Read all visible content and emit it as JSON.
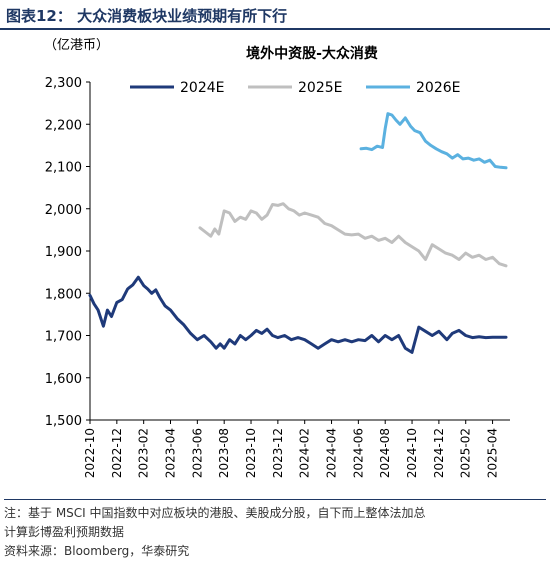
{
  "figure": {
    "title": "图表12：  大众消费板块业绩预期有所下行",
    "note_line1": "注：基于 MSCI 中国指数中对应板块的港股、美股成分股，自下而上整体法加总",
    "note_line2": "计算彭博盈利预期数据",
    "source": "资料来源：Bloomberg，华泰研究"
  },
  "chart_data": {
    "type": "line",
    "title": "境外中资股-大众消费",
    "unit_label": "（亿港币）",
    "ylim": [
      1500,
      2300
    ],
    "yticks": [
      "1,500",
      "1,600",
      "1,700",
      "1,800",
      "1,900",
      "2,000",
      "2,100",
      "2,200",
      "2,300"
    ],
    "ytick_values": [
      1500,
      1600,
      1700,
      1800,
      1900,
      2000,
      2100,
      2200,
      2300
    ],
    "xticks": [
      "2022-10",
      "2022-12",
      "2023-02",
      "2023-04",
      "2023-06",
      "2023-08",
      "2023-10",
      "2023-12",
      "2024-02",
      "2024-04",
      "2024-06",
      "2024-08",
      "2024-10",
      "2024-12",
      "2025-02",
      "2025-04"
    ],
    "xlim_months": [
      0,
      31.3
    ],
    "legend_position": "top",
    "series": [
      {
        "name": "2024E",
        "color": "#1f3a7a",
        "x": [
          0,
          0.3,
          0.6,
          1.0,
          1.3,
          1.6,
          2.0,
          2.4,
          2.8,
          3.2,
          3.6,
          4.0,
          4.3,
          4.6,
          4.9,
          5.2,
          5.6,
          6.0,
          6.5,
          7.0,
          7.5,
          8.0,
          8.5,
          9.0,
          9.4,
          9.7,
          10.0,
          10.4,
          10.8,
          11.2,
          11.6,
          12.0,
          12.4,
          12.8,
          13.2,
          13.6,
          14.0,
          14.5,
          15.0,
          15.5,
          16.0,
          16.5,
          17.0,
          17.5,
          18.0,
          18.5,
          19.0,
          19.5,
          20.0,
          20.5,
          21.0,
          21.5,
          22.0,
          22.5,
          23.0,
          23.5,
          24.0,
          24.5,
          25.0,
          25.5,
          26.0,
          26.3,
          26.6,
          27.0,
          27.5,
          28.0,
          28.5,
          29.0,
          29.5,
          30.0,
          30.5,
          31.0
        ],
        "values": [
          1795,
          1775,
          1760,
          1722,
          1760,
          1745,
          1778,
          1785,
          1810,
          1820,
          1838,
          1818,
          1810,
          1800,
          1808,
          1790,
          1770,
          1760,
          1740,
          1725,
          1705,
          1690,
          1700,
          1685,
          1670,
          1680,
          1670,
          1690,
          1680,
          1700,
          1690,
          1700,
          1712,
          1705,
          1715,
          1700,
          1695,
          1700,
          1690,
          1695,
          1690,
          1680,
          1670,
          1680,
          1690,
          1685,
          1690,
          1685,
          1690,
          1688,
          1700,
          1685,
          1700,
          1690,
          1700,
          1670,
          1660,
          1720,
          1710,
          1700,
          1710,
          1700,
          1690,
          1705,
          1712,
          1700,
          1695,
          1697,
          1695,
          1696,
          1696,
          1696
        ]
      },
      {
        "name": "2025E",
        "color": "#bfbfbf",
        "x": [
          8.2,
          8.6,
          9.0,
          9.3,
          9.6,
          10.0,
          10.4,
          10.8,
          11.2,
          11.6,
          12.0,
          12.4,
          12.8,
          13.2,
          13.6,
          14.0,
          14.4,
          14.8,
          15.2,
          15.6,
          16.0,
          16.5,
          17.0,
          17.5,
          18.0,
          18.5,
          19.0,
          19.5,
          20.0,
          20.5,
          21.0,
          21.5,
          22.0,
          22.5,
          23.0,
          23.5,
          24.0,
          24.5,
          25.0,
          25.5,
          26.0,
          26.5,
          27.0,
          27.5,
          28.0,
          28.5,
          29.0,
          29.5,
          30.0,
          30.5,
          31.0
        ],
        "values": [
          1955,
          1945,
          1935,
          1952,
          1940,
          1995,
          1990,
          1970,
          1980,
          1975,
          1995,
          1990,
          1975,
          1985,
          2010,
          2008,
          2012,
          2000,
          1995,
          1985,
          1990,
          1985,
          1980,
          1965,
          1960,
          1950,
          1940,
          1938,
          1940,
          1930,
          1935,
          1925,
          1930,
          1920,
          1935,
          1920,
          1910,
          1900,
          1880,
          1915,
          1905,
          1895,
          1890,
          1880,
          1895,
          1885,
          1890,
          1880,
          1885,
          1870,
          1865
        ]
      },
      {
        "name": "2026E",
        "color": "#5bb1e0",
        "x": [
          20.2,
          20.6,
          21.0,
          21.4,
          21.8,
          22.0,
          22.2,
          22.5,
          22.8,
          23.1,
          23.5,
          23.9,
          24.2,
          24.6,
          25.0,
          25.4,
          25.8,
          26.2,
          26.6,
          27.0,
          27.4,
          27.8,
          28.2,
          28.6,
          29.0,
          29.4,
          29.8,
          30.2,
          30.6,
          31.0
        ],
        "values": [
          2142,
          2143,
          2140,
          2148,
          2145,
          2190,
          2225,
          2222,
          2210,
          2200,
          2215,
          2195,
          2185,
          2180,
          2160,
          2150,
          2142,
          2135,
          2130,
          2120,
          2128,
          2118,
          2120,
          2115,
          2118,
          2110,
          2115,
          2100,
          2098,
          2097
        ]
      }
    ]
  }
}
